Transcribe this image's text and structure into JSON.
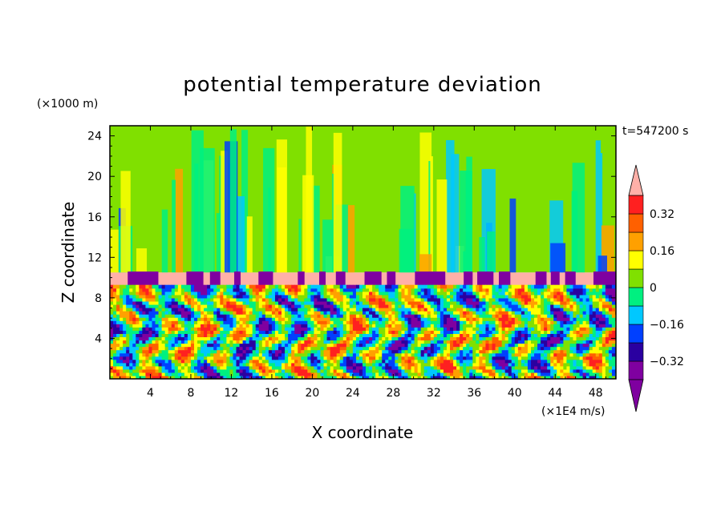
{
  "chart_data": {
    "type": "heatmap",
    "title": "potential temperature deviation",
    "xlabel": "X coordinate",
    "ylabel": "Z coordinate",
    "x_unit": "(×1E4 m/s)",
    "y_unit": "(×1000 m)",
    "time_label": "t=547200 s",
    "xlim": [
      0,
      50
    ],
    "ylim": [
      0,
      25
    ],
    "x_ticks": [
      4,
      8,
      12,
      16,
      20,
      24,
      28,
      32,
      36,
      40,
      44,
      48
    ],
    "y_ticks": [
      4,
      8,
      12,
      16,
      20,
      24
    ],
    "colorbar": {
      "levels": [
        -0.4,
        -0.32,
        -0.24,
        -0.16,
        -0.08,
        0,
        0.08,
        0.16,
        0.24,
        0.32,
        0.4
      ],
      "labels": [
        "0.32",
        "0.16",
        "0",
        "−0.16",
        "−0.32"
      ],
      "label_values": [
        0.32,
        0.16,
        0,
        -0.16,
        -0.32
      ],
      "colors": [
        "#7f00a0",
        "#2a00a0",
        "#0040ff",
        "#00c8ff",
        "#00f080",
        "#80e000",
        "#ffff00",
        "#ffa000",
        "#ff6000",
        "#ff2020"
      ],
      "over_color": "#ffb0a8",
      "under_color": "#7f00a0"
    },
    "regions": {
      "tropopause_band_z": [
        9.0,
        10.5
      ],
      "upper_layer_dominant": "#80e000",
      "upper_layer_secondary": "#00f080"
    }
  }
}
